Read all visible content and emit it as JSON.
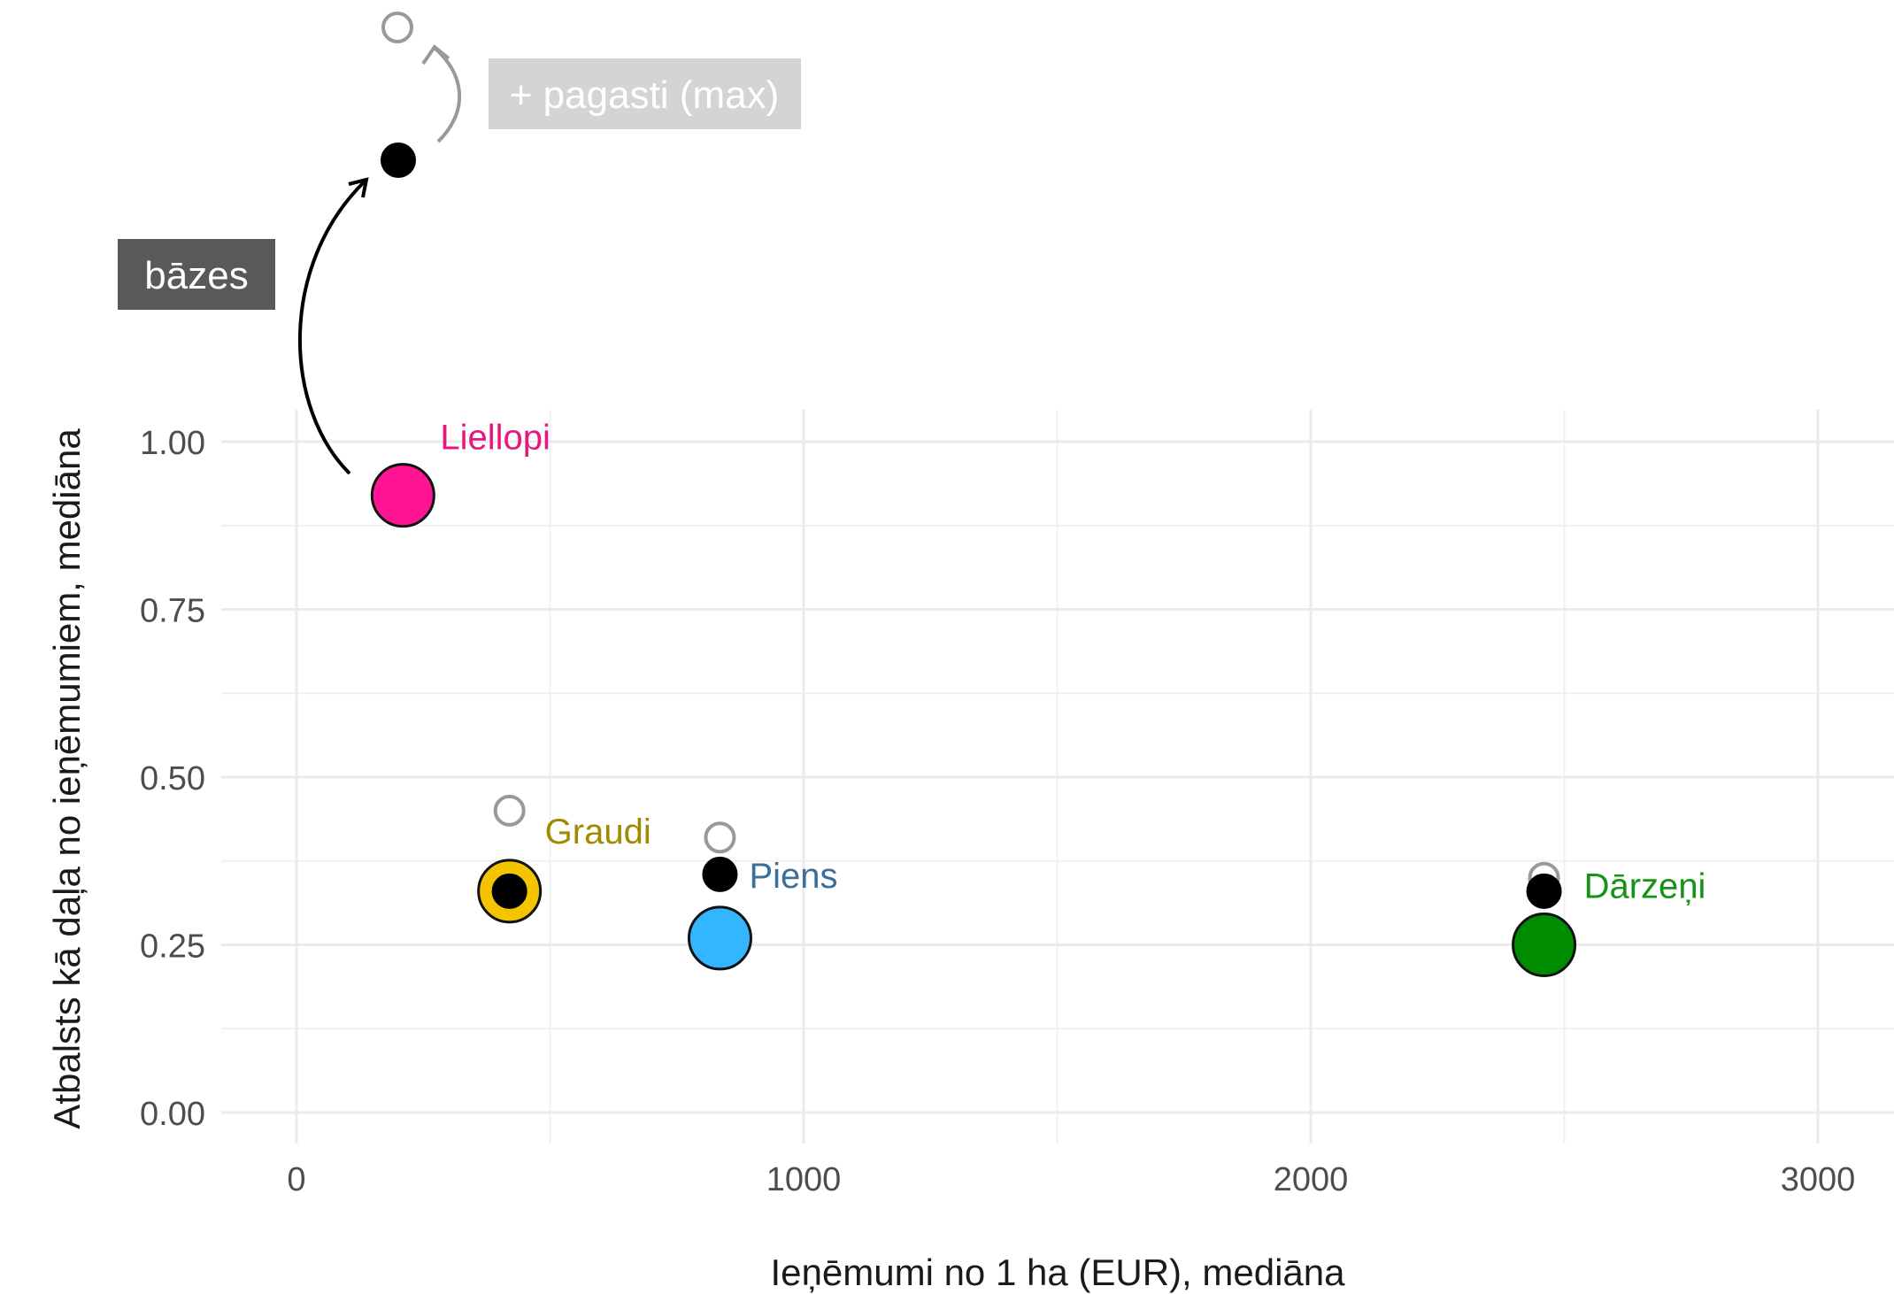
{
  "chart_data": {
    "type": "scatter",
    "xlabel": "Ieņēmumi no 1 ha (EUR), mediāna",
    "ylabel": "Atbalsts kā daļa no ieņēmumiem, mediāna",
    "xlim": [
      -150,
      3150
    ],
    "ylim": [
      0,
      1.05
    ],
    "x_ticks": [
      0,
      1000,
      2000,
      3000
    ],
    "y_ticks": [
      0.0,
      0.25,
      0.5,
      0.75,
      1.0
    ],
    "x_tick_labels": [
      "0",
      "1000",
      "2000",
      "3000"
    ],
    "y_tick_labels": [
      "0.00",
      "0.25",
      "0.50",
      "0.75",
      "1.00"
    ],
    "grid": true,
    "series": [
      {
        "name": "Liellopi",
        "x": 210,
        "y": 0.92,
        "base": null,
        "max": null,
        "color": "#ff1493",
        "label_color": "#e8177f"
      },
      {
        "name": "Graudi",
        "x": 420,
        "y": 0.33,
        "base": 0.33,
        "max": 0.45,
        "color": "#f5c400",
        "label_color": "#a08a00"
      },
      {
        "name": "Piens",
        "x": 835,
        "y": 0.26,
        "base": 0.355,
        "max": 0.41,
        "color": "#33b5ff",
        "label_color": "#3a6f9a"
      },
      {
        "name": "Dārzeņi",
        "x": 2460,
        "y": 0.25,
        "base": 0.33,
        "max": 0.35,
        "color": "#008c00",
        "label_color": "#149414"
      }
    ],
    "legend": {
      "placement": "top-left",
      "items": [
        {
          "label": "bāzes",
          "marker": "filled-black",
          "background": "#595959",
          "text_color": "#ffffff"
        },
        {
          "label": "+ pagasti (max)",
          "marker": "open-grey",
          "background": "#d4d4d4",
          "text_color": "#ffffff"
        }
      ]
    }
  }
}
